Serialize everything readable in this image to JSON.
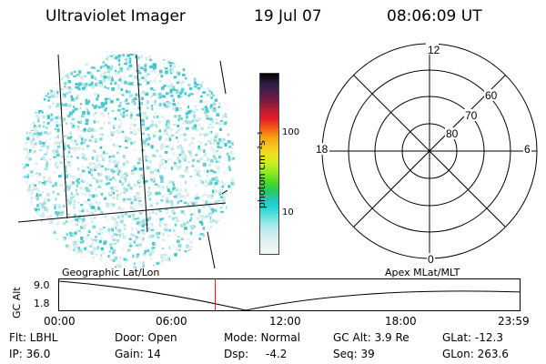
{
  "header": {
    "title": "Ultraviolet Imager",
    "date": "19 Jul 07",
    "time": "08:06:09 UT"
  },
  "colorbar": {
    "unit_label": "photon cm⁻²s⁻¹",
    "ticks": [
      "100",
      "10"
    ],
    "colors": [
      "#000000",
      "#2a1b3f",
      "#4b1d4d",
      "#7a1a3f",
      "#b61d33",
      "#e51c25",
      "#f45a1a",
      "#f79d15",
      "#f8c31b",
      "#eae123",
      "#c6ee23",
      "#89eb22",
      "#4ed921",
      "#28c95c",
      "#22c7b8",
      "#2fd5d7",
      "#6ee3e0",
      "#b0eaea",
      "#d3eeee",
      "#e9f2f2",
      "#f4f7f7"
    ]
  },
  "polar": {
    "labels": {
      "top": "12",
      "bottom": "0",
      "left": "18",
      "right": "6",
      "ring_80": "80",
      "ring_70": "70",
      "ring_60": "60"
    }
  },
  "timeline": {
    "left_label": "Geographic Lat/Lon",
    "right_label": "Apex MLat/MLT",
    "y_axis_label": "GC Alt",
    "y_ticks": [
      "9.0",
      "1.8"
    ],
    "x_ticks": [
      "00:00",
      "06:00",
      "12:00",
      "18:00",
      "23:59"
    ],
    "marker_fraction": 0.3375
  },
  "status": {
    "col1": [
      "Flt: LBHL",
      "IP: 36.0"
    ],
    "col2": [
      "Door: Open",
      "Gain: 14"
    ],
    "col3a": [
      "Mode: Normal",
      "Dsp:"
    ],
    "col3b": "-4.2",
    "col4": [
      "GC Alt: 3.9 Re",
      "Seq: 39"
    ],
    "col5": [
      "GLat: -12.3",
      "GLon: 263.6"
    ]
  }
}
